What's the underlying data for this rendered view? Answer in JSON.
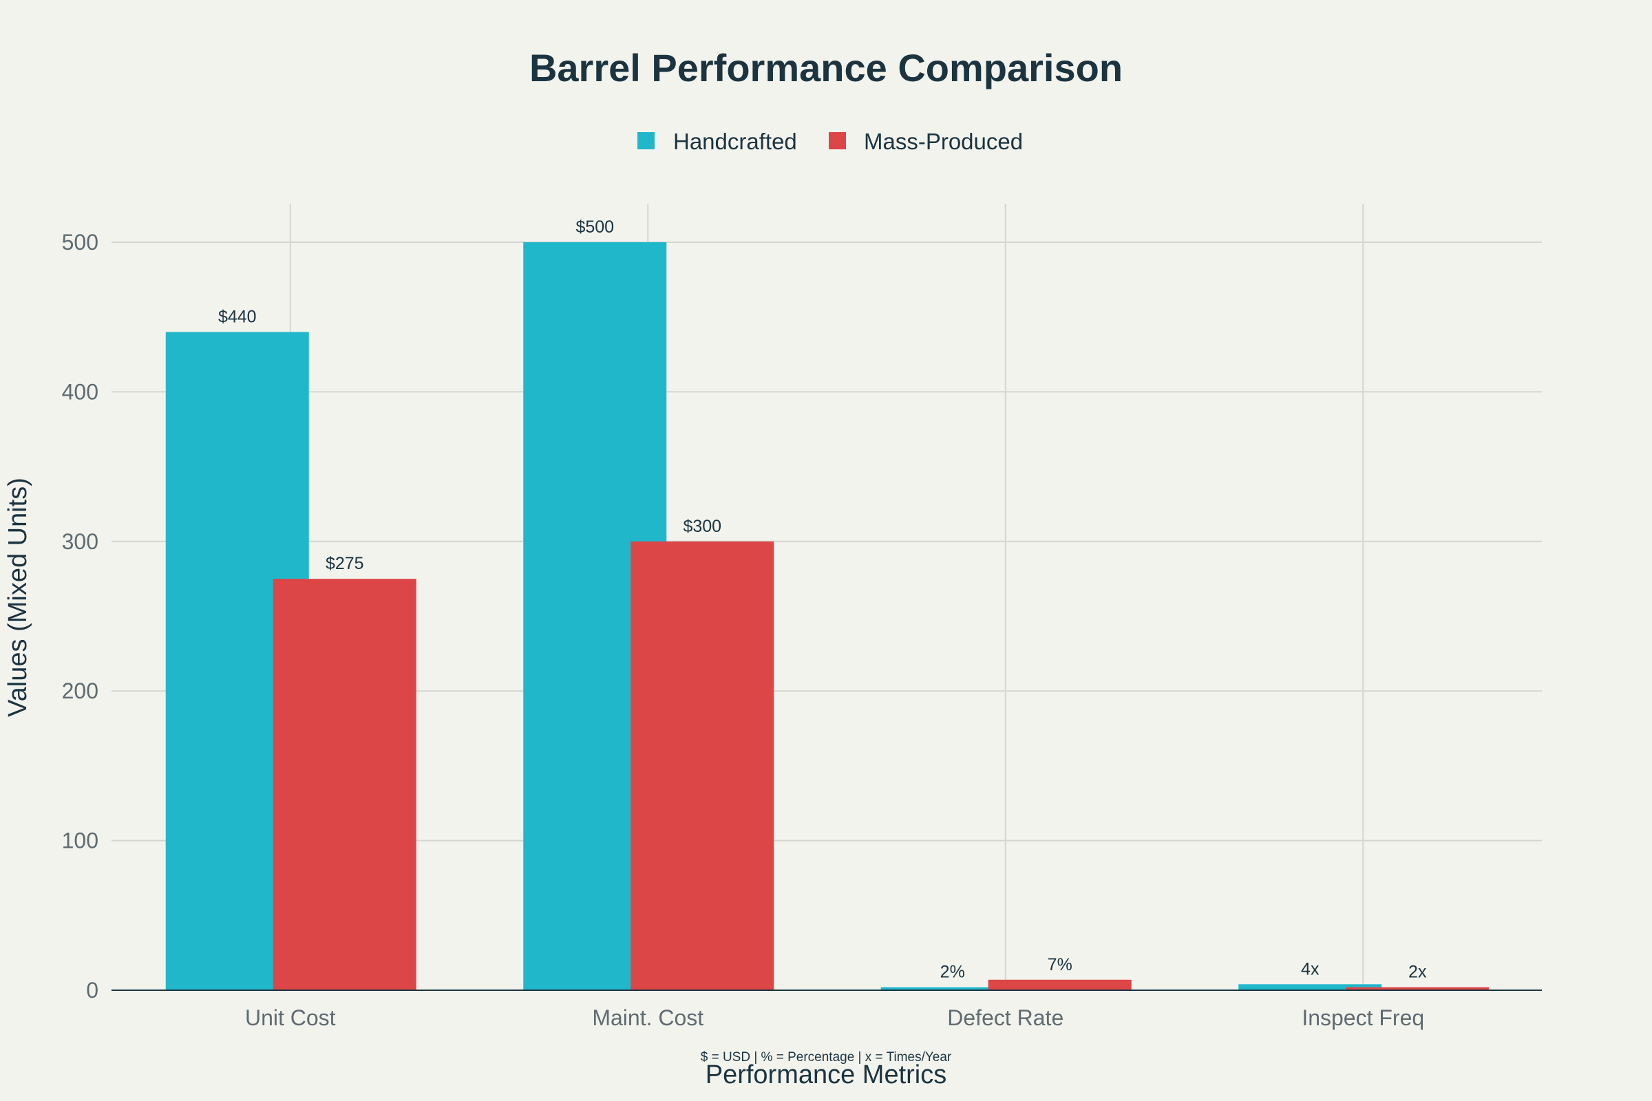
{
  "chart_data": {
    "type": "bar",
    "title": "Barrel Performance Comparison",
    "xlabel": "Performance Metrics",
    "ylabel": "Values (Mixed Units)",
    "note": "$ = USD | % = Percentage | x = Times/Year",
    "categories": [
      "Unit Cost",
      "Maint. Cost",
      "Defect Rate",
      "Inspect Freq"
    ],
    "series": [
      {
        "name": "Handcrafted",
        "color": "#21b7cb",
        "values": [
          440,
          500,
          2,
          4
        ],
        "labels": [
          "$440",
          "$500",
          "2%",
          "4x"
        ]
      },
      {
        "name": "Mass-Produced",
        "color": "#dc4647",
        "values": [
          275,
          300,
          7,
          2
        ],
        "labels": [
          "$275",
          "$300",
          "7%",
          "2x"
        ]
      }
    ],
    "ylim": [
      0,
      525
    ],
    "yticks": [
      0,
      100,
      200,
      300,
      400,
      500
    ],
    "grid": true,
    "legend_position": "top-center"
  }
}
